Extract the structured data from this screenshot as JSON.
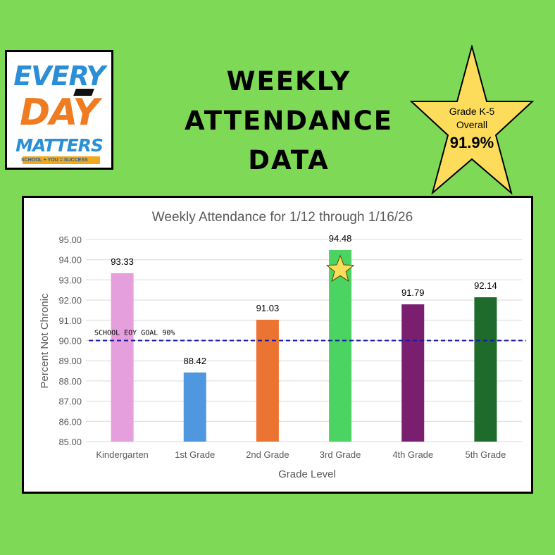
{
  "logo": {
    "line1": "EVERY",
    "line2": "DAY",
    "line3": "MATTERS",
    "tagline": "SCHOOL + YOU = SUCCESS"
  },
  "headline": {
    "line1": "WEEKLY ATTENDANCE",
    "line2": "DATA"
  },
  "star_badge": {
    "line1": "Grade K-5",
    "line2": "Overall",
    "value": "91.9%",
    "color": "#fddc5c"
  },
  "chart_data": {
    "type": "bar",
    "title": "Weekly Attendance for 1/12 through 1/16/26",
    "xlabel": "Grade Level",
    "ylabel": "Percent Not Chronic",
    "categories": [
      "Kindergarten",
      "1st Grade",
      "2nd Grade",
      "3rd Grade",
      "4th Grade",
      "5th Grade"
    ],
    "values": [
      93.33,
      88.42,
      91.03,
      94.48,
      91.79,
      92.14
    ],
    "value_labels": [
      "93.33",
      "88.42",
      "91.03",
      "94.48",
      "91.79",
      "92.14"
    ],
    "colors": [
      "#e59fdc",
      "#4f97de",
      "#ec7433",
      "#4cd462",
      "#7a1f70",
      "#1e6b2b"
    ],
    "ylim": [
      85,
      95
    ],
    "yticks": [
      "85.00",
      "86.00",
      "87.00",
      "88.00",
      "89.00",
      "90.00",
      "91.00",
      "92.00",
      "93.00",
      "94.00",
      "95.00"
    ],
    "grid": true,
    "goal_line": {
      "value": 90,
      "label": "SCHOOL EOY GOAL 90%",
      "color": "#1a1aa8"
    },
    "star_on_category": "3rd Grade"
  }
}
